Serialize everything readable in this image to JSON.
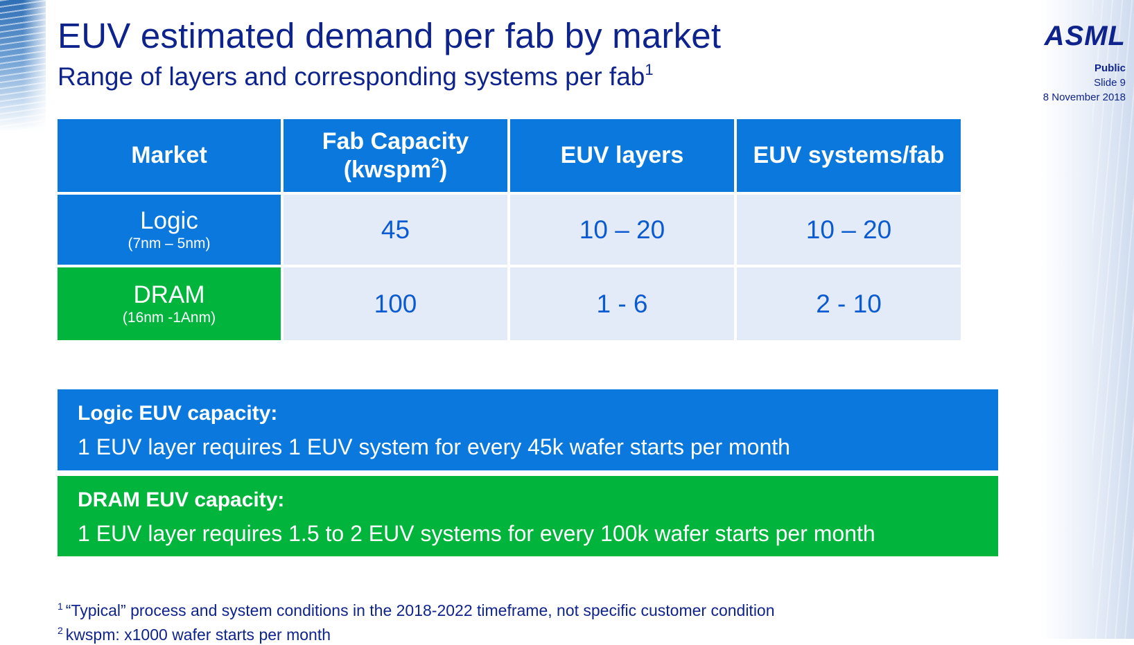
{
  "header": {
    "title": "EUV estimated demand per fab by market",
    "subtitle": "Range of layers and corresponding systems per fab",
    "subtitle_sup": "1"
  },
  "brand": {
    "logo": "ASML",
    "classification": "Public",
    "slide": "Slide 9",
    "date": "8 November 2018"
  },
  "table": {
    "headers": {
      "market": "Market",
      "capacity": "Fab Capacity",
      "capacity_unit_open": "(kwspm",
      "capacity_unit_sup": "2",
      "capacity_unit_close": ")",
      "layers": "EUV layers",
      "systems": "EUV systems/fab"
    },
    "rows": [
      {
        "market": "Logic",
        "node": "(7nm – 5nm)",
        "capacity": "45",
        "layers": "10 – 20",
        "systems": "10 – 20"
      },
      {
        "market": "DRAM",
        "node": "(16nm -1Anm)",
        "capacity": "100",
        "layers": "1 - 6",
        "systems": "2 - 10"
      }
    ]
  },
  "capacity": {
    "logic": {
      "title": "Logic EUV capacity:",
      "text": "1 EUV layer requires 1 EUV system for every 45k wafer starts per month"
    },
    "dram": {
      "title": "DRAM EUV capacity:",
      "text": "1 EUV layer requires 1.5 to 2 EUV systems for every 100k wafer starts per month"
    }
  },
  "footnotes": [
    {
      "num": "1",
      "text": "“Typical” process and system conditions in the 2018-2022 timeframe, not specific customer condition"
    },
    {
      "num": "2",
      "text": "kwspm: x1000 wafer starts per month"
    }
  ],
  "colors": {
    "navy": "#0f238c",
    "blue": "#0a78dc",
    "green": "#00b43c",
    "cell_bg": "#e4ebf8",
    "value_text": "#0a5ad2"
  }
}
